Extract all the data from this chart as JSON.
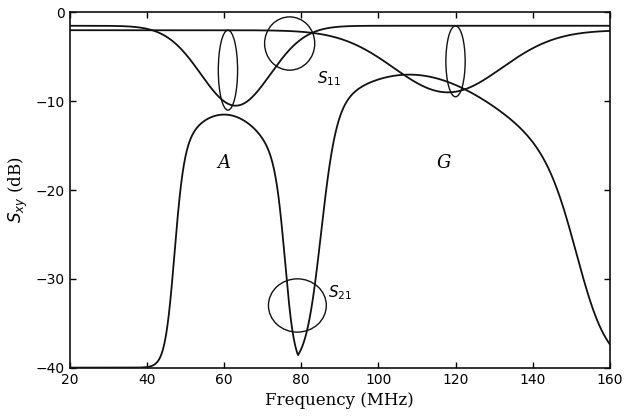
{
  "xlabel": "Frequency (MHz)",
  "ylabel": "$S_{xy}$ (dB)",
  "xlim": [
    20,
    160
  ],
  "ylim": [
    -40,
    0
  ],
  "xticks": [
    20,
    40,
    60,
    80,
    100,
    120,
    140,
    160
  ],
  "yticks": [
    0,
    -10,
    -20,
    -30,
    -40
  ],
  "background": "#ffffff",
  "line_color": "#111111",
  "label_A": "A",
  "label_G": "G",
  "label_S11": "$S_{11}$",
  "label_S21": "$S_{21}$",
  "ellipse_color": "#111111"
}
